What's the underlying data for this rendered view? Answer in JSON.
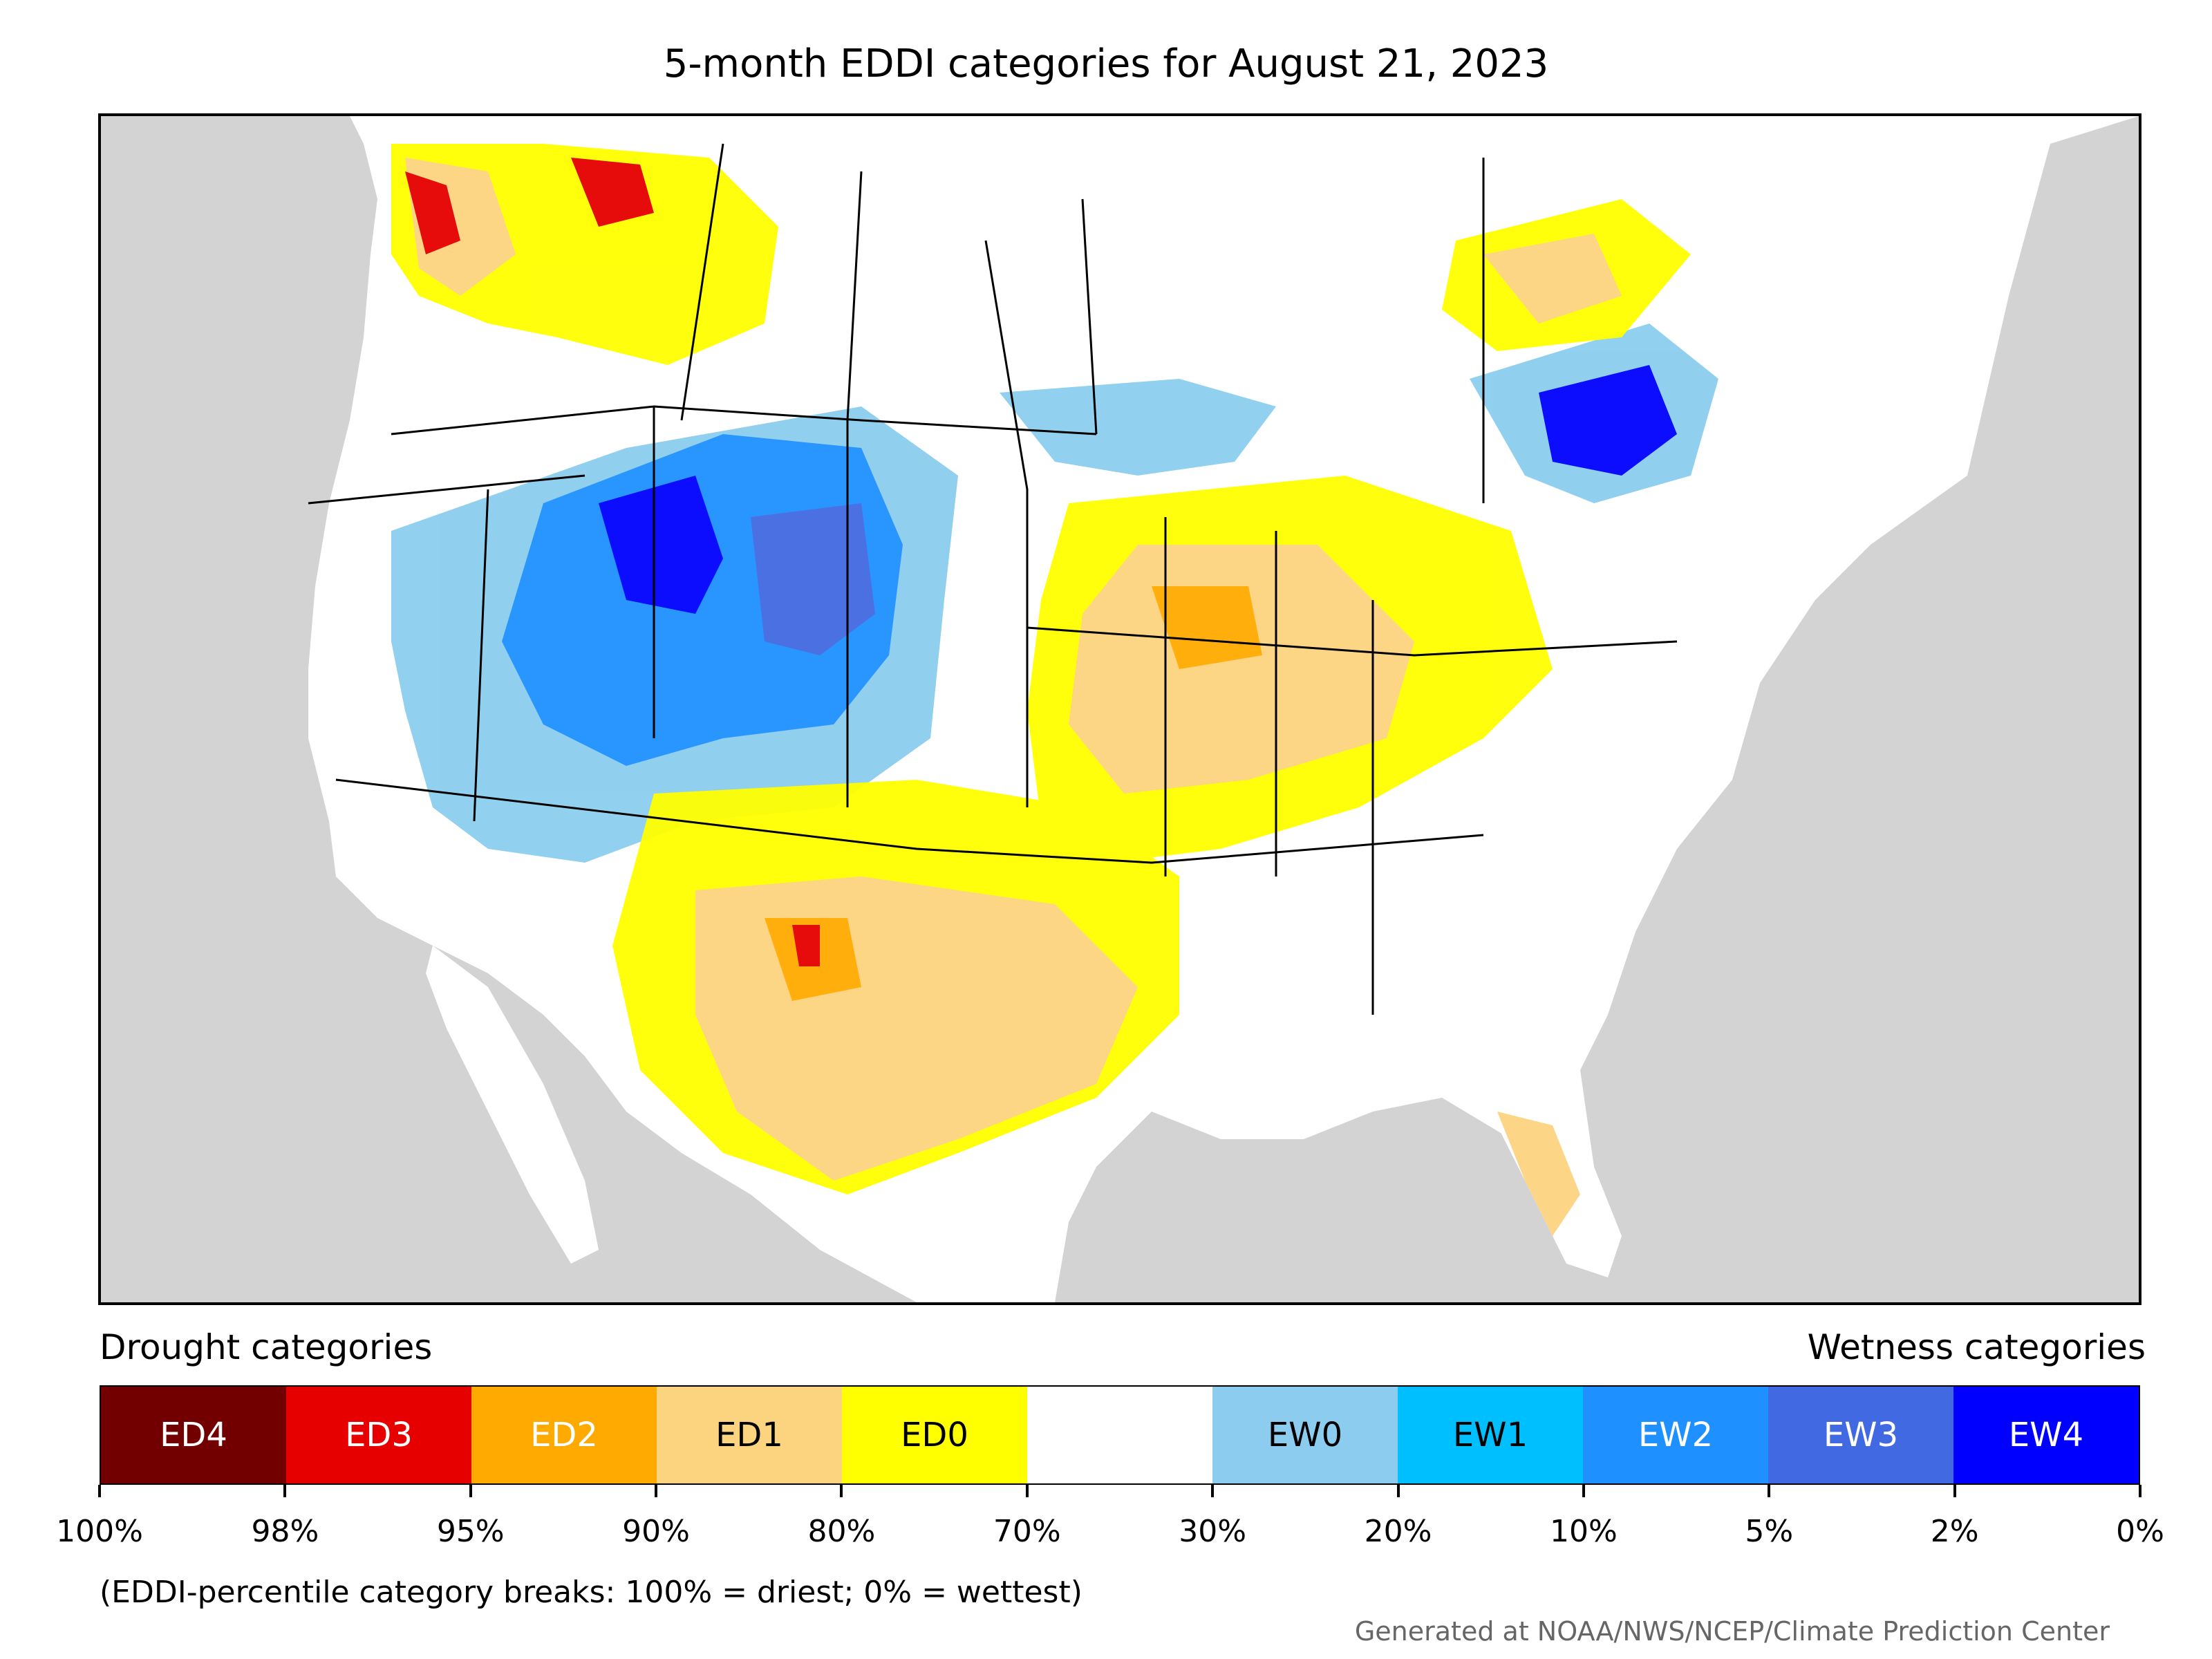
{
  "title": "5-month EDDI categories for August 21, 2023",
  "map": {
    "region": "Contiguous United States and surrounding areas",
    "colors": {
      "ocean": "#d3d3d3",
      "ED4": "#730000",
      "ED3": "#e60000",
      "ED2": "#ffaa00",
      "ED1": "#fcd37f",
      "ED0": "#ffff00",
      "neutral": "#ffffff",
      "EW0": "#8ccdef",
      "EW1": "#00bfff",
      "EW2": "#1e90ff",
      "EW3": "#4169e1",
      "EW4": "#0000ff"
    }
  },
  "legend": {
    "drought_heading": "Drought categories",
    "wetness_heading": "Wetness categories",
    "categories": [
      {
        "label": "ED4",
        "color": "#730000",
        "text_color": "#ffffff"
      },
      {
        "label": "ED3",
        "color": "#e60000",
        "text_color": "#ffffff"
      },
      {
        "label": "ED2",
        "color": "#ffaa00",
        "text_color": "#ffffff"
      },
      {
        "label": "ED1",
        "color": "#fcd37f",
        "text_color": "#000000"
      },
      {
        "label": "ED0",
        "color": "#ffff00",
        "text_color": "#000000"
      },
      {
        "label": "",
        "color": "#ffffff",
        "text_color": "#000000"
      },
      {
        "label": "EW0",
        "color": "#8ccdef",
        "text_color": "#000000"
      },
      {
        "label": "EW1",
        "color": "#00bfff",
        "text_color": "#000000"
      },
      {
        "label": "EW2",
        "color": "#1e90ff",
        "text_color": "#ffffff"
      },
      {
        "label": "EW3",
        "color": "#4169e1",
        "text_color": "#ffffff"
      },
      {
        "label": "EW4",
        "color": "#0000ff",
        "text_color": "#ffffff"
      }
    ],
    "breaks": [
      "100%",
      "98%",
      "95%",
      "90%",
      "80%",
      "70%",
      "30%",
      "20%",
      "10%",
      "5%",
      "2%",
      "0%"
    ]
  },
  "note": "(EDDI-percentile category breaks: 100% = driest; 0% = wettest)",
  "credit": "Generated at NOAA/NWS/NCEP/Climate Prediction Center"
}
